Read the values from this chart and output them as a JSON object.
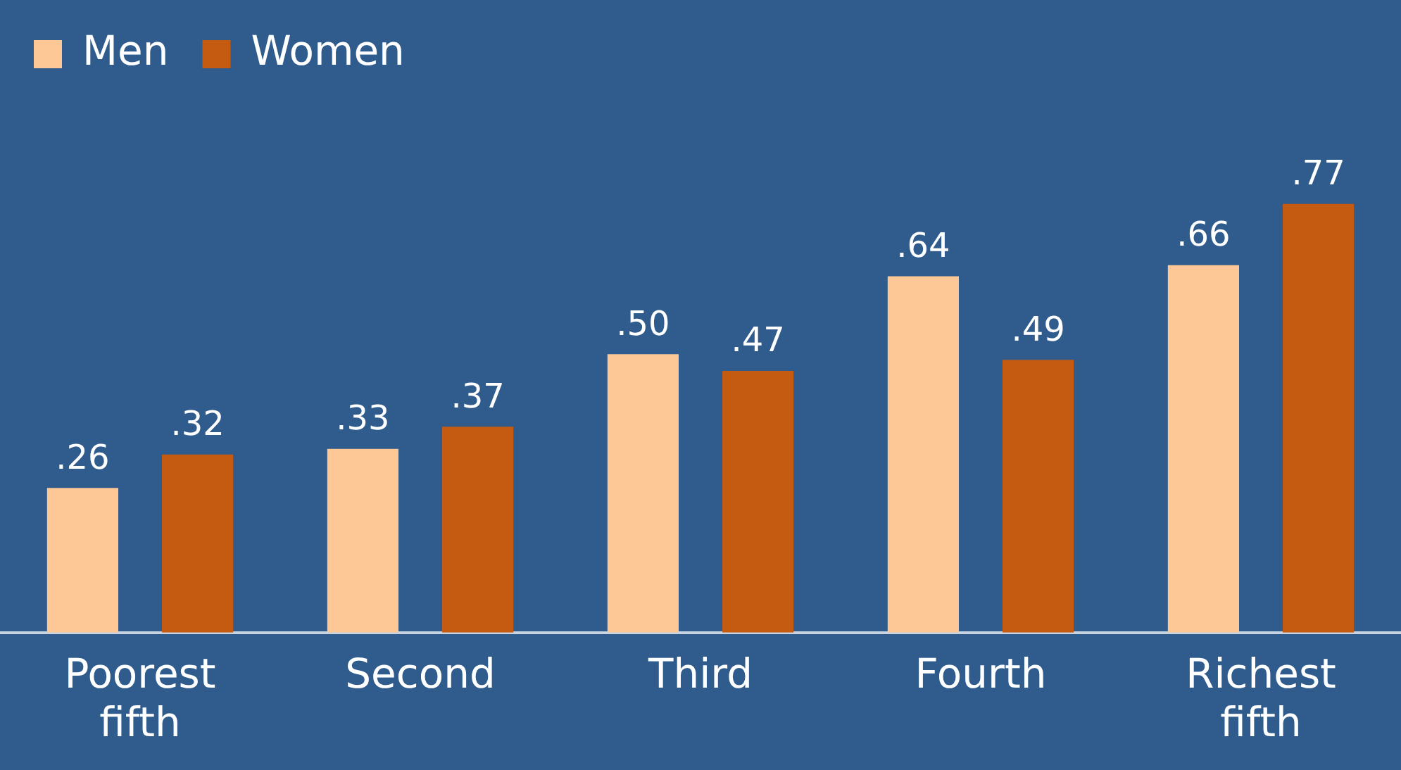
{
  "chart_data": {
    "type": "bar",
    "categories": [
      "Poorest fifth",
      "Second",
      "Third",
      "Fourth",
      "Richest fifth"
    ],
    "series": [
      {
        "name": "Men",
        "color": "#fdc895",
        "values": [
          0.26,
          0.33,
          0.5,
          0.64,
          0.66
        ],
        "value_labels": [
          ".26",
          ".33",
          ".50",
          ".64",
          ".66"
        ]
      },
      {
        "name": "Women",
        "color": "#c55a11",
        "values": [
          0.32,
          0.37,
          0.47,
          0.49,
          0.77
        ],
        "value_labels": [
          ".32",
          ".37",
          ".47",
          ".49",
          ".77"
        ]
      }
    ],
    "legend": "top left",
    "grid": false
  }
}
